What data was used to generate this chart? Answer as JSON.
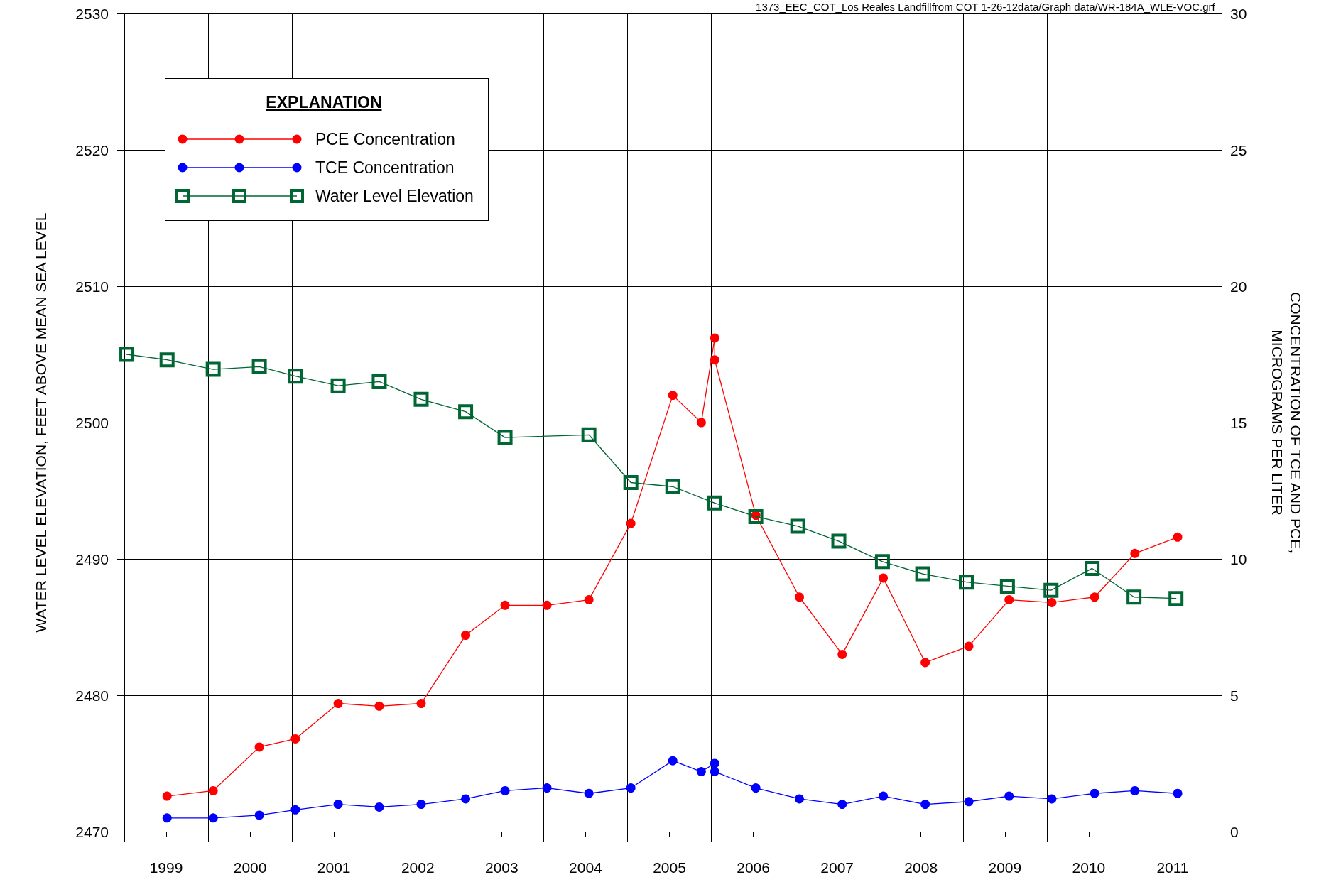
{
  "chart_data": {
    "type": "line",
    "ylabel": "WATER LEVEL ELEVATION, FEET ABOVE MEAN SEA LEVEL",
    "y2label": "CONCENTRATION OF TCE AND PCE,\nMICROGRAMS PER LITER",
    "legend_title": "EXPLANATION",
    "annotations": [
      "1373_EEC_COT_Los Reales Landfillfrom COT 1-26-12data/Graph data/WR-184A_WLE-VOC.grf"
    ],
    "xlim": [
      1999,
      2012
    ],
    "xticks": [
      {
        "value": 1999,
        "label": null
      },
      {
        "value": 1999.5,
        "label": "1999"
      },
      {
        "value": 2000,
        "label": null
      },
      {
        "value": 2000.5,
        "label": "2000"
      },
      {
        "value": 2001,
        "label": null
      },
      {
        "value": 2001.5,
        "label": "2001"
      },
      {
        "value": 2002,
        "label": null
      },
      {
        "value": 2002.5,
        "label": "2002"
      },
      {
        "value": 2003,
        "label": null
      },
      {
        "value": 2003.5,
        "label": "2003"
      },
      {
        "value": 2004,
        "label": null
      },
      {
        "value": 2004.5,
        "label": "2004"
      },
      {
        "value": 2005,
        "label": null
      },
      {
        "value": 2005.5,
        "label": "2005"
      },
      {
        "value": 2006,
        "label": null
      },
      {
        "value": 2006.5,
        "label": "2006"
      },
      {
        "value": 2007,
        "label": null
      },
      {
        "value": 2007.5,
        "label": "2007"
      },
      {
        "value": 2008,
        "label": null
      },
      {
        "value": 2008.5,
        "label": "2008"
      },
      {
        "value": 2009,
        "label": null
      },
      {
        "value": 2009.5,
        "label": "2009"
      },
      {
        "value": 2010,
        "label": null
      },
      {
        "value": 2010.5,
        "label": "2010"
      },
      {
        "value": 2011,
        "label": null
      },
      {
        "value": 2011.5,
        "label": "2011"
      },
      {
        "value": 2012,
        "label": null
      }
    ],
    "ylim": [
      2470,
      2530
    ],
    "yticks": [
      2470,
      2480,
      2490,
      2500,
      2510,
      2520,
      2530
    ],
    "y2lim": [
      0,
      30
    ],
    "y2ticks": [
      0,
      5,
      10,
      15,
      20,
      25,
      30
    ],
    "grid": true,
    "legend": "top left",
    "series": [
      {
        "name": "PCE Concentration",
        "color": "#ff0000",
        "marker": "circle",
        "axis": "y2",
        "x": [
          1999.51,
          2000.06,
          2000.61,
          2001.04,
          2001.55,
          2002.04,
          2002.54,
          2003.07,
          2003.54,
          2004.04,
          2004.54,
          2005.04,
          2005.54,
          2005.88,
          2006.04,
          2006.04,
          2006.53,
          2007.05,
          2007.56,
          2008.05,
          2008.55,
          2009.07,
          2009.55,
          2010.06,
          2010.57,
          2011.05,
          2011.56
        ],
        "values": [
          1.3,
          1.5,
          3.1,
          3.4,
          4.7,
          4.6,
          4.7,
          7.2,
          8.3,
          8.3,
          8.5,
          11.3,
          16.0,
          15.0,
          18.1,
          17.3,
          11.6,
          8.6,
          6.5,
          9.3,
          6.2,
          6.8,
          8.5,
          8.4,
          8.6,
          10.2,
          10.8
        ]
      },
      {
        "name": "TCE Concentration",
        "color": "#0000ff",
        "marker": "circle",
        "axis": "y2",
        "x": [
          1999.51,
          2000.06,
          2000.61,
          2001.04,
          2001.55,
          2002.04,
          2002.54,
          2003.07,
          2003.54,
          2004.04,
          2004.54,
          2005.04,
          2005.54,
          2005.88,
          2006.04,
          2006.04,
          2006.53,
          2007.05,
          2007.56,
          2008.05,
          2008.55,
          2009.07,
          2009.55,
          2010.06,
          2010.57,
          2011.05,
          2011.56
        ],
        "values": [
          0.5,
          0.5,
          0.6,
          0.8,
          1.0,
          0.9,
          1.0,
          1.2,
          1.5,
          1.6,
          1.4,
          1.6,
          2.6,
          2.2,
          2.5,
          2.2,
          1.6,
          1.2,
          1.0,
          1.3,
          1.0,
          1.1,
          1.3,
          1.2,
          1.4,
          1.5,
          1.4
        ]
      },
      {
        "name": "Water Level Elevation",
        "color": "#006633",
        "marker": "square",
        "x": [
          1999.03,
          1999.51,
          2000.06,
          2000.61,
          2001.04,
          2001.55,
          2002.04,
          2002.54,
          2003.07,
          2003.54,
          2004.54,
          2005.04,
          2005.54,
          2006.04,
          2006.53,
          2007.03,
          2007.52,
          2008.04,
          2008.52,
          2009.04,
          2009.53,
          2010.05,
          2010.54,
          2011.04,
          2011.54
        ],
        "values": [
          2505.0,
          2504.6,
          2503.9,
          2504.1,
          2503.4,
          2502.7,
          2503.0,
          2501.7,
          2500.8,
          2498.9,
          2499.1,
          2495.6,
          2495.3,
          2494.1,
          2493.1,
          2492.4,
          2491.3,
          2489.8,
          2488.9,
          2488.3,
          2488.0,
          2487.7,
          2489.3,
          2487.2,
          2487.1
        ]
      }
    ]
  }
}
